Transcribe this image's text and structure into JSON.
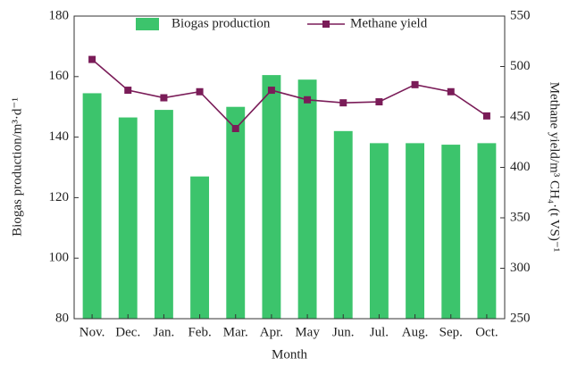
{
  "chart_data": {
    "type": "bar",
    "x_label": "Month",
    "y_label": "Biogas production/m³·d⁻¹",
    "y2_label": "Methane yield/m³ CH₄·(t VS)⁻¹",
    "categories": [
      "Nov.",
      "Dec.",
      "Jan.",
      "Feb.",
      "Mar.",
      "Apr.",
      "May",
      "Jun.",
      "Jul.",
      "Aug.",
      "Sep.",
      "Oct."
    ],
    "series": [
      {
        "name": "Biogas production",
        "type": "bar",
        "color": "#3cc46c",
        "values": [
          154.5,
          146.5,
          149,
          127,
          150,
          160.5,
          159,
          142,
          138,
          138,
          137.5,
          138
        ]
      },
      {
        "name": "Methane yield",
        "type": "line",
        "axis": "y2",
        "color": "#7a1c58",
        "values": [
          507,
          476.5,
          469,
          475,
          438.5,
          476.5,
          467,
          464,
          465,
          482,
          475,
          451
        ]
      }
    ],
    "ylim": [
      80,
      180
    ],
    "yticks": [
      80,
      100,
      120,
      140,
      160,
      180
    ],
    "y2lim": [
      250,
      550
    ],
    "y2ticks": [
      250,
      300,
      350,
      400,
      450,
      500,
      550
    ]
  }
}
